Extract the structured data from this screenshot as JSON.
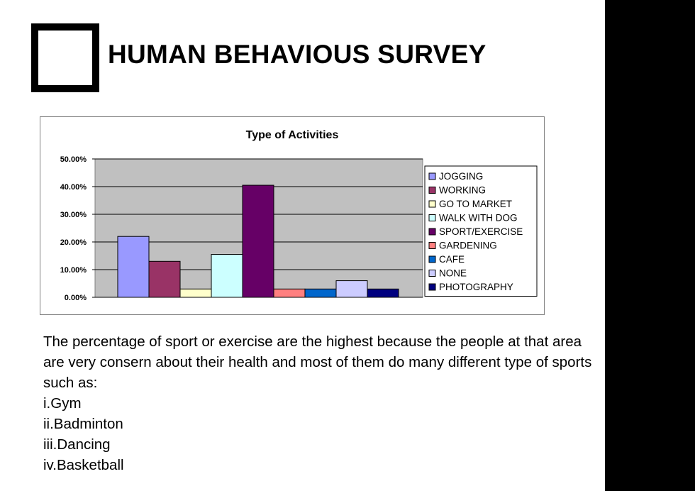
{
  "slide": {
    "title": "HUMAN BEHAVIOUS SURVEY",
    "paragraph": "The percentage of sport or exercise are the highest because the people at that area are very consern about their health and most of them do many different type of sports such as:",
    "list": [
      "i.Gym",
      "ii.Badminton",
      "iii.Dancing",
      "iv.Basketball"
    ]
  },
  "chart_data": {
    "type": "bar",
    "title": "Type of Activities",
    "xlabel": "",
    "ylabel": "",
    "ylim": [
      0,
      50
    ],
    "yticks": [
      "0.00%",
      "10.00%",
      "20.00%",
      "30.00%",
      "40.00%",
      "50.00%"
    ],
    "grid": true,
    "legend_position": "right",
    "series": [
      {
        "name": "JOGGING",
        "value": 22,
        "color": "#9999ff"
      },
      {
        "name": "WORKING",
        "value": 13,
        "color": "#993366"
      },
      {
        "name": "GO TO MARKET",
        "value": 3,
        "color": "#ffffcc"
      },
      {
        "name": "WALK WITH DOG",
        "value": 15.5,
        "color": "#ccffff"
      },
      {
        "name": "SPORT/EXERCISE",
        "value": 40.5,
        "color": "#660066"
      },
      {
        "name": "GARDENING",
        "value": 3,
        "color": "#ff8080"
      },
      {
        "name": "CAFE",
        "value": 3,
        "color": "#0066cc"
      },
      {
        "name": "NONE",
        "value": 6,
        "color": "#ccccff"
      },
      {
        "name": "PHOTOGRAPHY",
        "value": 3,
        "color": "#000080"
      }
    ],
    "plot_background": "#c0c0c0"
  }
}
